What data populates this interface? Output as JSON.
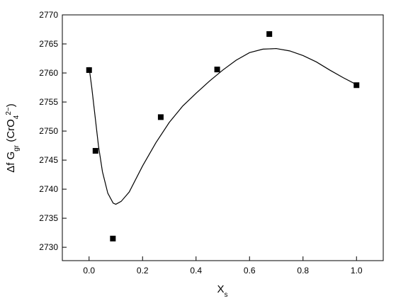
{
  "chart_data": {
    "type": "scatter",
    "xlabel": [
      {
        "text": "X"
      },
      {
        "text": "s",
        "shift": "sub"
      }
    ],
    "ylabel": [
      {
        "text": "Δf G"
      },
      {
        "text": "gr",
        "shift": "sub"
      },
      {
        "text": " (CrO"
      },
      {
        "text": "4",
        "shift": "sub"
      },
      {
        "text": "2−",
        "shift": "super"
      },
      {
        "text": ")"
      }
    ],
    "xlim": [
      -0.1,
      1.1
    ],
    "ylim": [
      2727.7,
      2770
    ],
    "xticks": [
      {
        "value": 0,
        "label": "0.0"
      },
      0.2,
      0.4,
      0.6,
      0.8,
      {
        "value": 1,
        "label": "1.0"
      }
    ],
    "yticks": [
      2730,
      2735,
      2740,
      2745,
      2750,
      2755,
      2760,
      2765,
      2770
    ],
    "series": [
      {
        "color": "#000000",
        "marker": "square",
        "x": [
          0.0,
          0.024,
          0.089,
          0.268,
          0.479,
          0.674,
          1.0
        ],
        "values": [
          2760.5,
          2746.6,
          2731.5,
          2752.4,
          2760.6,
          2766.7,
          2757.9
        ]
      },
      {
        "color": "#000000",
        "marker": "line",
        "x": [
          0.0,
          0.01,
          0.02,
          0.035,
          0.05,
          0.07,
          0.09,
          0.1,
          0.12,
          0.15,
          0.2,
          0.25,
          0.3,
          0.35,
          0.4,
          0.45,
          0.5,
          0.55,
          0.6,
          0.65,
          0.7,
          0.75,
          0.8,
          0.85,
          0.9,
          0.95,
          1.0
        ],
        "values": [
          2761,
          2757.5,
          2753.5,
          2747.5,
          2743,
          2739.3,
          2737.6,
          2737.4,
          2737.9,
          2739.5,
          2744,
          2748,
          2751.5,
          2754.3,
          2756.5,
          2758.6,
          2760.5,
          2762.2,
          2763.5,
          2764.1,
          2764.2,
          2763.8,
          2763,
          2761.9,
          2760.5,
          2759.2,
          2758
        ]
      }
    ]
  }
}
